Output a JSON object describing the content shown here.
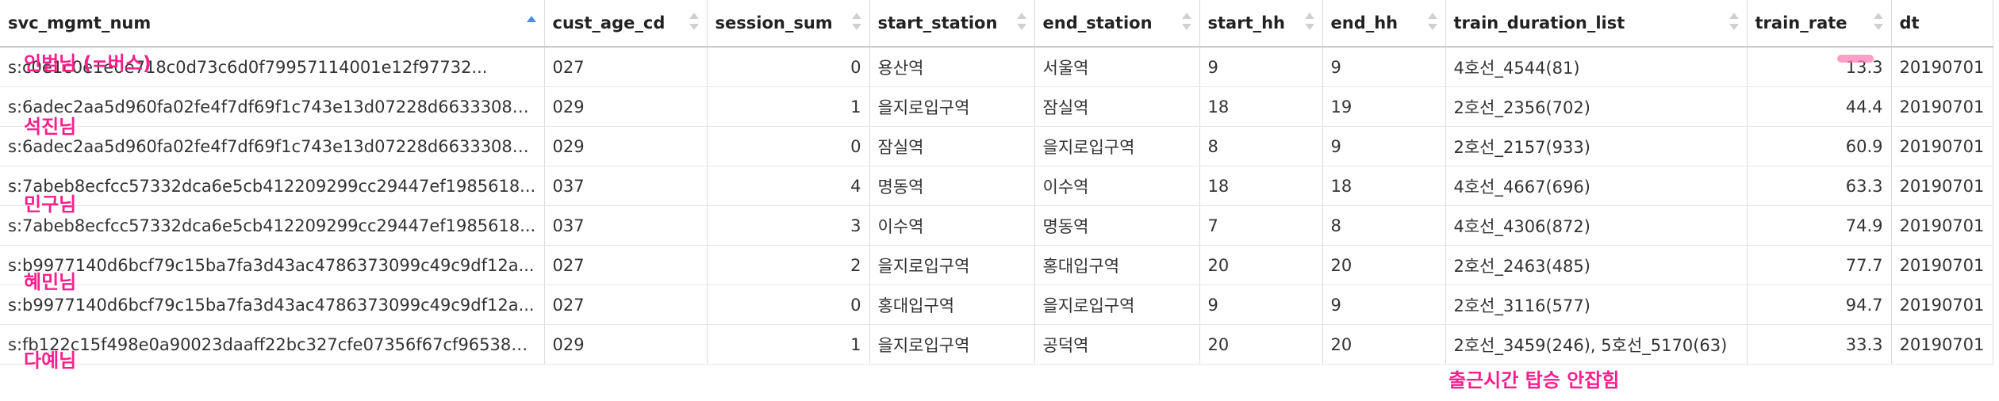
{
  "table": {
    "columns": [
      "svc_mgmt_num",
      "cust_age_cd",
      "session_sum",
      "start_station",
      "end_station",
      "start_hh",
      "end_hh",
      "train_duration_list",
      "train_rate",
      "dt"
    ],
    "rows": [
      [
        "s:c0e1c0e1e0e718c0d73c6d0f79957114001e12f97732...",
        "027",
        "0",
        "용산역",
        "서울역",
        "9",
        "9",
        "4호선_4544(81)",
        "13.3",
        "20190701"
      ],
      [
        "s:6adec2aa5d960fa02fe4f7df69f1c743e13d07228d6633308a...",
        "029",
        "1",
        "을지로입구역",
        "잠실역",
        "18",
        "19",
        "2호선_2356(702)",
        "44.4",
        "20190701"
      ],
      [
        "s:6adec2aa5d960fa02fe4f7df69f1c743e13d07228d6633308a...",
        "029",
        "0",
        "잠실역",
        "을지로입구역",
        "8",
        "9",
        "2호선_2157(933)",
        "60.9",
        "20190701"
      ],
      [
        "s:7abeb8ecfcc57332dca6e5cb412209299cc29447ef1985618...",
        "037",
        "4",
        "명동역",
        "이수역",
        "18",
        "18",
        "4호선_4667(696)",
        "63.3",
        "20190701"
      ],
      [
        "s:7abeb8ecfcc57332dca6e5cb412209299cc29447ef1985618...",
        "037",
        "3",
        "이수역",
        "명동역",
        "7",
        "8",
        "4호선_4306(872)",
        "74.9",
        "20190701"
      ],
      [
        "s:b9977140d6bcf79c15ba7fa3d43ac4786373099c49c9df12a...",
        "027",
        "2",
        "을지로입구역",
        "홍대입구역",
        "20",
        "20",
        "2호선_2463(485)",
        "77.7",
        "20190701"
      ],
      [
        "s:b9977140d6bcf79c15ba7fa3d43ac4786373099c49c9df12a...",
        "027",
        "0",
        "홍대입구역",
        "을지로입구역",
        "9",
        "9",
        "2호선_3116(577)",
        "94.7",
        "20190701"
      ],
      [
        "s:fb122c15f498e0a90023daaff22bc327cfe07356f67cf965382...",
        "029",
        "1",
        "을지로입구역",
        "공덕역",
        "20",
        "20",
        "2호선_3459(246), 5호선_5170(63)",
        "33.3",
        "20190701"
      ]
    ]
  },
  "annotations": {
    "a1": "인범님 (=버스)",
    "a2": "석진님",
    "a3": "민구님",
    "a4": "혜민님",
    "a5": "다예님",
    "a6": "출근시간 탑승 안잡힘"
  },
  "colors": {
    "annotation": "#ff1f8c",
    "sort_active": "#4a90d9"
  }
}
